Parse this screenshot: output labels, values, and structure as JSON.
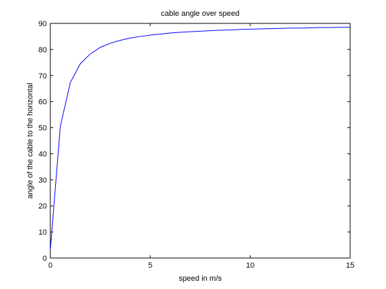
{
  "chart_data": {
    "type": "line",
    "title": "cable angle over speed",
    "xlabel": "speed in m/s",
    "ylabel": "angle of the cable to the horizontal",
    "xlim": [
      0,
      15
    ],
    "ylim": [
      0,
      90
    ],
    "xticks": [
      0,
      5,
      10,
      15
    ],
    "yticks": [
      0,
      10,
      20,
      30,
      40,
      50,
      60,
      70,
      80,
      90
    ],
    "grid": false,
    "line_color": "#0000ff",
    "series": [
      {
        "x": [
          0,
          0.5,
          1,
          1.5,
          2,
          2.5,
          3,
          3.5,
          4,
          4.5,
          5,
          5.5,
          6,
          6.5,
          7,
          7.5,
          8,
          8.5,
          9,
          9.5,
          10,
          10.5,
          11,
          11.5,
          12,
          12.5,
          13,
          13.5,
          14,
          14.5,
          15
        ],
        "y": [
          3,
          50.5,
          67.3,
          74.5,
          78.3,
          80.8,
          82.4,
          83.5,
          84.4,
          85.0,
          85.5,
          85.9,
          86.3,
          86.6,
          86.8,
          87.0,
          87.2,
          87.4,
          87.5,
          87.7,
          87.8,
          87.9,
          88.0,
          88.1,
          88.2,
          88.2,
          88.3,
          88.4,
          88.4,
          88.5,
          88.5
        ]
      }
    ]
  }
}
